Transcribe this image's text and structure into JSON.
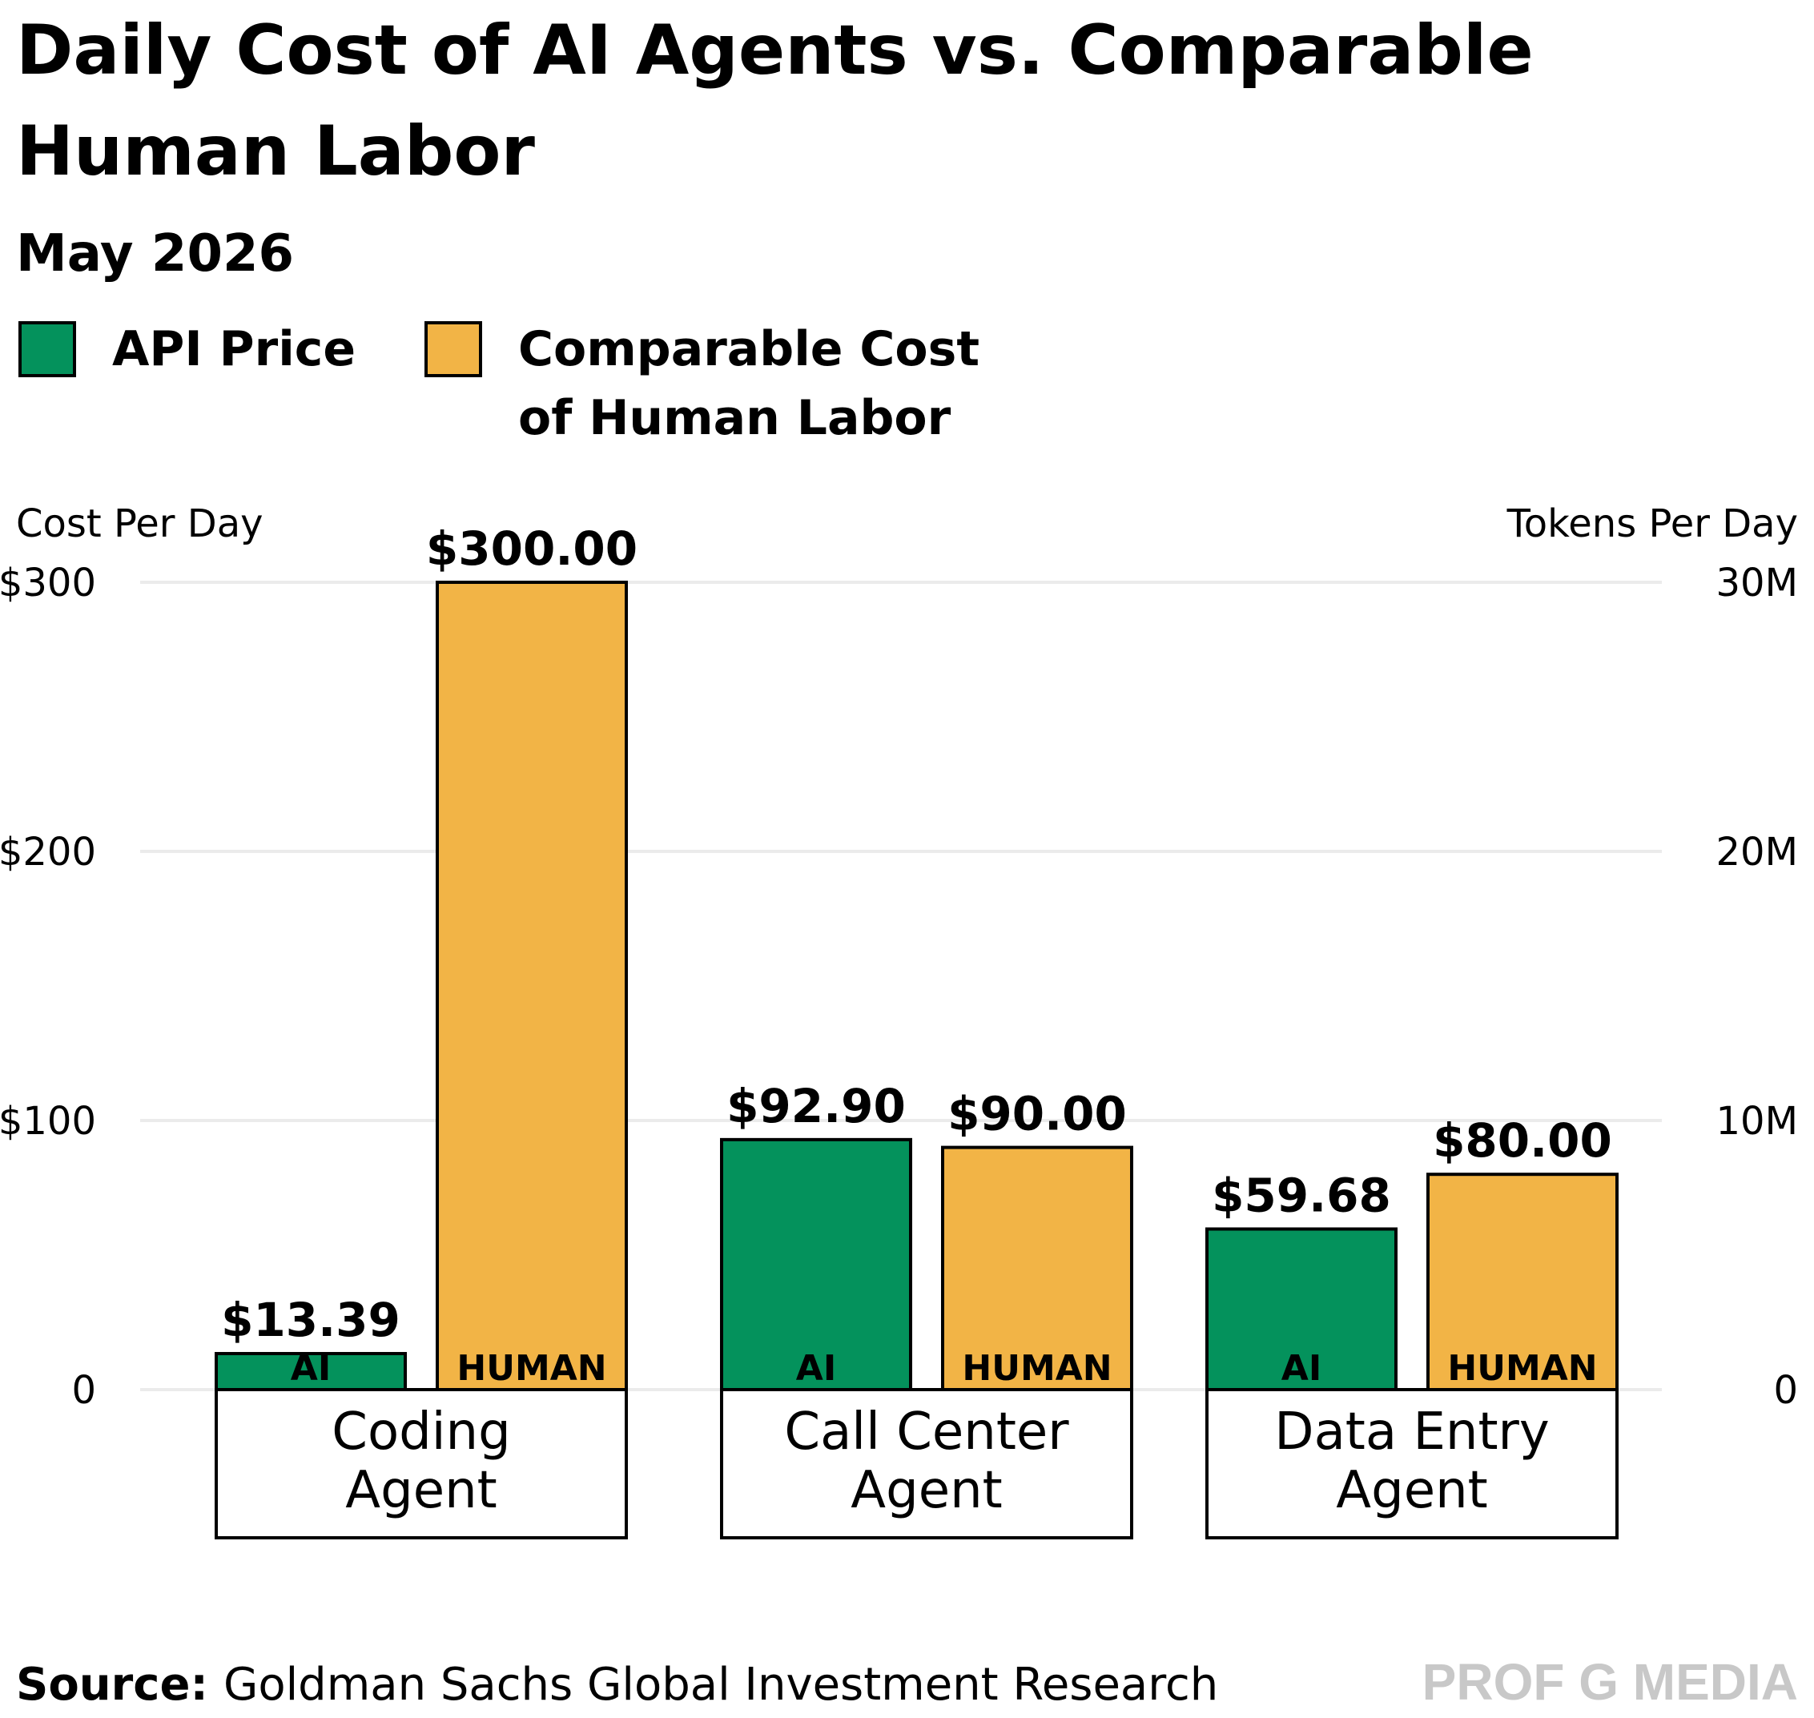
{
  "chart_data": {
    "type": "bar",
    "title_lines": [
      "Daily Cost of AI Agents vs. Comparable",
      "Human Labor"
    ],
    "subtitle": "May 2026",
    "legend": [
      {
        "lines": [
          "API Price"
        ],
        "color": "#04925c"
      },
      {
        "lines": [
          "Comparable Cost",
          "of Human Labor"
        ],
        "color": "#f2b446"
      }
    ],
    "left_axis": {
      "label": "Cost Per Day",
      "ticks": [
        0,
        100,
        200,
        300
      ],
      "tick_labels": [
        "0",
        "$100",
        "$200",
        "$300"
      ]
    },
    "right_axis": {
      "label": "Tokens Per Day",
      "tick_labels": [
        "0",
        "10M",
        "20M",
        "30M"
      ]
    },
    "ylim": [
      0,
      300
    ],
    "categories": [
      {
        "lines": [
          "Coding",
          "Agent"
        ]
      },
      {
        "lines": [
          "Call Center",
          "Agent"
        ]
      },
      {
        "lines": [
          "Data Entry",
          "Agent"
        ]
      }
    ],
    "series": [
      {
        "name": "API Price",
        "tag": "AI",
        "color": "#04925c",
        "values": [
          13.39,
          92.9,
          59.68
        ],
        "labels": [
          "$13.39",
          "$92.90",
          "$59.68"
        ]
      },
      {
        "name": "Comparable Cost of Human Labor",
        "tag": "HUMAN",
        "color": "#f2b446",
        "values": [
          300,
          90,
          80
        ],
        "labels": [
          "$300.00",
          "$90.00",
          "$80.00"
        ]
      }
    ],
    "grid": true
  },
  "footer": {
    "source_key": "Source:",
    "source_text": "Goldman Sachs Global Investment Research",
    "brand": "PROF G MEDIA"
  }
}
